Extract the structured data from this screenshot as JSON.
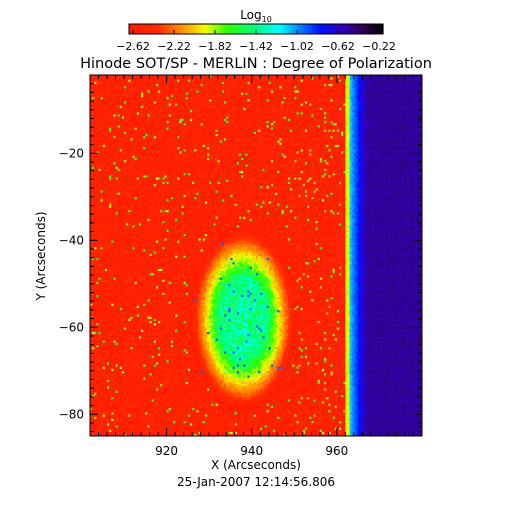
{
  "chart_data": {
    "type": "heatmap",
    "title": "Hinode SOT/SP - MERLIN : Degree of Polarization",
    "colorbar": {
      "label_base": "Log",
      "label_sub": "10",
      "tick_labels": [
        "−2.62",
        "−2.22",
        "−1.82",
        "−1.42",
        "−1.02",
        "−0.62",
        "−0.22"
      ],
      "range": [
        -2.62,
        -0.22
      ]
    },
    "xlabel": "X (Arcseconds)",
    "ylabel": "Y (Arcseconds)",
    "xlim": [
      902,
      980
    ],
    "ylim": [
      -85,
      -2
    ],
    "xticks": [
      920,
      940,
      960
    ],
    "yticks": [
      -20,
      -40,
      -60,
      -80
    ],
    "x_minor_step": 2,
    "y_minor_step": 2,
    "timestamp": "25-Jan-2007 12:14:56.806",
    "regions": {
      "background_level": -2.6,
      "limb_x": 963,
      "limb_level": -1.9,
      "off_limb_level": -0.55,
      "off_limb_edge_level": -1.15,
      "plage_center": [
        938,
        -58
      ],
      "plage_level": -1.5,
      "plage_peak_level": -0.95
    },
    "colormap": [
      {
        "v": -2.62,
        "color": "#ff1800"
      },
      {
        "v": -2.35,
        "color": "#ff2a00"
      },
      {
        "v": -2.1,
        "color": "#ff9a00"
      },
      {
        "v": -1.9,
        "color": "#f0ff00"
      },
      {
        "v": -1.7,
        "color": "#30ff00"
      },
      {
        "v": -1.42,
        "color": "#00ff88"
      },
      {
        "v": -1.2,
        "color": "#00ffff"
      },
      {
        "v": -1.02,
        "color": "#0088ff"
      },
      {
        "v": -0.82,
        "color": "#0010ff"
      },
      {
        "v": -0.62,
        "color": "#3000c0"
      },
      {
        "v": -0.42,
        "color": "#300050"
      },
      {
        "v": -0.22,
        "color": "#000000"
      }
    ]
  }
}
